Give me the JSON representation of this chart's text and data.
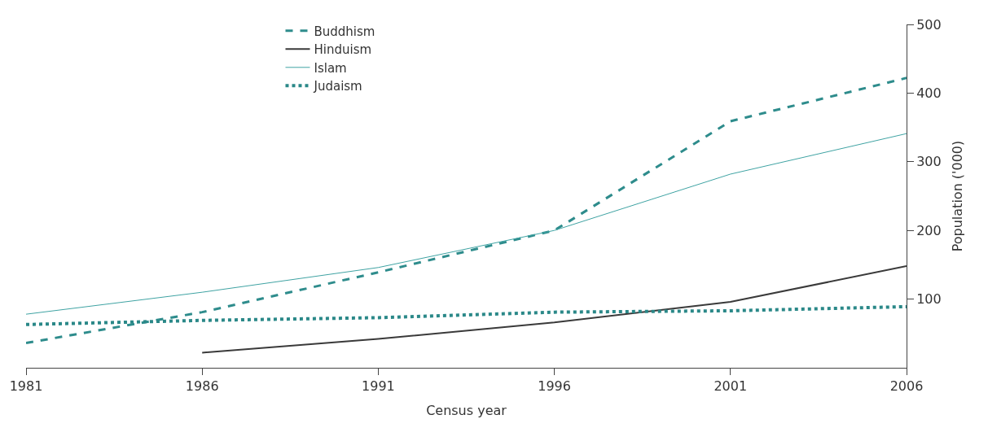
{
  "chart_data": {
    "type": "line",
    "xlabel": "Census year",
    "ylabel": "Population ('000)",
    "x": [
      1981,
      1986,
      1991,
      1996,
      2001,
      2006
    ],
    "xlim": [
      1981,
      2006
    ],
    "xticks": [
      1981,
      1986,
      1991,
      1996,
      2001,
      2006
    ],
    "ylim": [
      0,
      500
    ],
    "yticks": [
      100,
      200,
      300,
      400,
      500
    ],
    "legend": "top left",
    "series": [
      {
        "name": "Buddhism",
        "color": "#2e8c8c",
        "line_style": "dashed",
        "values": [
          36,
          81,
          139,
          200,
          359,
          422
        ]
      },
      {
        "name": "Hinduism",
        "color": "#3a3a3a",
        "line_style": "solid",
        "values": [
          null,
          22,
          42,
          66,
          96,
          148
        ]
      },
      {
        "name": "Islam",
        "color": "#3fa3a3",
        "line_style": "solid",
        "values": [
          78,
          110,
          146,
          200,
          282,
          341
        ]
      },
      {
        "name": "Judaism",
        "color": "#2a8888",
        "line_style": "dotted",
        "values": [
          63,
          69,
          73,
          81,
          83,
          89
        ]
      }
    ]
  }
}
